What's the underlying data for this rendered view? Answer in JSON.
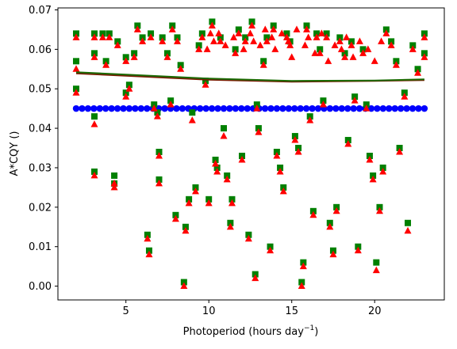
{
  "chart_data": {
    "type": "scatter",
    "xlabel": "Photoperiod (hours day",
    "xlabel_sup": "−1",
    "xlabel_tail": ")",
    "ylabel": "A*CQY ()",
    "xlim": [
      0.9,
      24.2
    ],
    "ylim": [
      -0.0035,
      0.0705
    ],
    "xticks": [
      5,
      10,
      15,
      20
    ],
    "yticks": [
      0.0,
      0.01,
      0.02,
      0.03,
      0.04,
      0.05,
      0.06,
      0.07
    ],
    "ytick_labels": [
      "0.00",
      "0.01",
      "0.02",
      "0.03",
      "0.04",
      "0.05",
      "0.06",
      "0.07"
    ],
    "grid": false,
    "legend": "none",
    "colors": {
      "green": "#008000",
      "red": "#ff0000",
      "blue": "#0000ff",
      "trend_dark": "#7a1a00",
      "trend_green": "#1a6a00"
    },
    "series": [
      {
        "marker": "square",
        "color": "green",
        "points": [
          [
            2.0,
            0.064
          ],
          [
            2.0,
            0.057
          ],
          [
            2.0,
            0.05
          ],
          [
            3.1,
            0.064
          ],
          [
            3.1,
            0.059
          ],
          [
            3.1,
            0.043
          ],
          [
            3.1,
            0.029
          ],
          [
            3.6,
            0.064
          ],
          [
            3.8,
            0.057
          ],
          [
            4.0,
            0.064
          ],
          [
            4.3,
            0.028
          ],
          [
            4.3,
            0.026
          ],
          [
            4.5,
            0.062
          ],
          [
            5.0,
            0.058
          ],
          [
            5.0,
            0.049
          ],
          [
            5.2,
            0.051
          ],
          [
            5.5,
            0.059
          ],
          [
            5.7,
            0.066
          ],
          [
            6.0,
            0.063
          ],
          [
            6.3,
            0.013
          ],
          [
            6.4,
            0.009
          ],
          [
            6.5,
            0.064
          ],
          [
            6.7,
            0.046
          ],
          [
            6.9,
            0.044
          ],
          [
            7.0,
            0.034
          ],
          [
            7.0,
            0.027
          ],
          [
            7.2,
            0.063
          ],
          [
            7.5,
            0.059
          ],
          [
            7.7,
            0.047
          ],
          [
            7.8,
            0.066
          ],
          [
            8.0,
            0.018
          ],
          [
            8.1,
            0.063
          ],
          [
            8.3,
            0.056
          ],
          [
            8.5,
            0.001
          ],
          [
            8.6,
            0.015
          ],
          [
            8.8,
            0.022
          ],
          [
            9.0,
            0.044
          ],
          [
            9.2,
            0.025
          ],
          [
            9.4,
            0.061
          ],
          [
            9.6,
            0.064
          ],
          [
            9.8,
            0.052
          ],
          [
            10.0,
            0.022
          ],
          [
            10.2,
            0.067
          ],
          [
            10.4,
            0.032
          ],
          [
            10.5,
            0.03
          ],
          [
            10.7,
            0.063
          ],
          [
            10.9,
            0.04
          ],
          [
            11.1,
            0.028
          ],
          [
            11.3,
            0.016
          ],
          [
            11.4,
            0.022
          ],
          [
            11.6,
            0.06
          ],
          [
            11.8,
            0.065
          ],
          [
            12.0,
            0.033
          ],
          [
            12.2,
            0.063
          ],
          [
            12.4,
            0.013
          ],
          [
            12.6,
            0.067
          ],
          [
            12.8,
            0.003
          ],
          [
            12.9,
            0.046
          ],
          [
            13.0,
            0.04
          ],
          [
            13.3,
            0.057
          ],
          [
            13.5,
            0.063
          ],
          [
            13.7,
            0.01
          ],
          [
            13.9,
            0.066
          ],
          [
            14.1,
            0.034
          ],
          [
            14.3,
            0.03
          ],
          [
            14.5,
            0.025
          ],
          [
            14.7,
            0.064
          ],
          [
            14.9,
            0.062
          ],
          [
            15.2,
            0.038
          ],
          [
            15.4,
            0.035
          ],
          [
            15.6,
            0.001
          ],
          [
            15.7,
            0.006
          ],
          [
            15.9,
            0.066
          ],
          [
            16.1,
            0.043
          ],
          [
            16.3,
            0.019
          ],
          [
            16.5,
            0.064
          ],
          [
            16.7,
            0.06
          ],
          [
            16.9,
            0.047
          ],
          [
            17.1,
            0.064
          ],
          [
            17.3,
            0.016
          ],
          [
            17.5,
            0.009
          ],
          [
            17.7,
            0.02
          ],
          [
            17.9,
            0.063
          ],
          [
            18.2,
            0.059
          ],
          [
            18.4,
            0.037
          ],
          [
            18.6,
            0.062
          ],
          [
            18.8,
            0.048
          ],
          [
            19.0,
            0.01
          ],
          [
            19.3,
            0.06
          ],
          [
            19.5,
            0.046
          ],
          [
            19.7,
            0.033
          ],
          [
            19.9,
            0.028
          ],
          [
            20.1,
            0.006
          ],
          [
            20.3,
            0.02
          ],
          [
            20.5,
            0.03
          ],
          [
            20.7,
            0.065
          ],
          [
            21.0,
            0.062
          ],
          [
            21.3,
            0.057
          ],
          [
            21.5,
            0.035
          ],
          [
            21.8,
            0.049
          ],
          [
            22.0,
            0.016
          ],
          [
            22.3,
            0.061
          ],
          [
            22.6,
            0.055
          ],
          [
            23.0,
            0.064
          ],
          [
            23.0,
            0.059
          ]
        ]
      },
      {
        "marker": "triangle",
        "color": "red",
        "points": [
          [
            2.0,
            0.063
          ],
          [
            2.0,
            0.055
          ],
          [
            2.0,
            0.049
          ],
          [
            3.1,
            0.063
          ],
          [
            3.1,
            0.058
          ],
          [
            3.1,
            0.041
          ],
          [
            3.1,
            0.028
          ],
          [
            3.6,
            0.063
          ],
          [
            3.8,
            0.056
          ],
          [
            4.0,
            0.063
          ],
          [
            4.3,
            0.026
          ],
          [
            4.3,
            0.025
          ],
          [
            4.5,
            0.061
          ],
          [
            5.0,
            0.057
          ],
          [
            5.0,
            0.048
          ],
          [
            5.2,
            0.05
          ],
          [
            5.5,
            0.058
          ],
          [
            5.7,
            0.065
          ],
          [
            6.0,
            0.062
          ],
          [
            6.3,
            0.012
          ],
          [
            6.4,
            0.008
          ],
          [
            6.5,
            0.063
          ],
          [
            6.7,
            0.045
          ],
          [
            6.9,
            0.043
          ],
          [
            7.0,
            0.033
          ],
          [
            7.0,
            0.026
          ],
          [
            7.2,
            0.062
          ],
          [
            7.5,
            0.058
          ],
          [
            7.7,
            0.046
          ],
          [
            7.8,
            0.065
          ],
          [
            8.0,
            0.017
          ],
          [
            8.1,
            0.062
          ],
          [
            8.3,
            0.055
          ],
          [
            8.5,
            0.0
          ],
          [
            8.6,
            0.014
          ],
          [
            8.8,
            0.021
          ],
          [
            9.0,
            0.042
          ],
          [
            9.2,
            0.024
          ],
          [
            9.4,
            0.06
          ],
          [
            9.6,
            0.063
          ],
          [
            9.8,
            0.051
          ],
          [
            10.0,
            0.021
          ],
          [
            10.2,
            0.066
          ],
          [
            10.4,
            0.031
          ],
          [
            10.5,
            0.029
          ],
          [
            10.7,
            0.062
          ],
          [
            10.9,
            0.038
          ],
          [
            11.1,
            0.027
          ],
          [
            11.3,
            0.015
          ],
          [
            11.4,
            0.021
          ],
          [
            11.6,
            0.059
          ],
          [
            11.8,
            0.064
          ],
          [
            12.0,
            0.032
          ],
          [
            12.2,
            0.062
          ],
          [
            12.4,
            0.012
          ],
          [
            12.6,
            0.066
          ],
          [
            12.8,
            0.002
          ],
          [
            12.9,
            0.045
          ],
          [
            13.0,
            0.039
          ],
          [
            13.3,
            0.056
          ],
          [
            13.5,
            0.062
          ],
          [
            13.7,
            0.009
          ],
          [
            13.9,
            0.065
          ],
          [
            14.1,
            0.033
          ],
          [
            14.3,
            0.029
          ],
          [
            14.5,
            0.024
          ],
          [
            14.7,
            0.063
          ],
          [
            14.9,
            0.061
          ],
          [
            15.2,
            0.037
          ],
          [
            15.4,
            0.034
          ],
          [
            15.6,
            0.0
          ],
          [
            15.7,
            0.005
          ],
          [
            15.9,
            0.065
          ],
          [
            16.1,
            0.042
          ],
          [
            16.3,
            0.018
          ],
          [
            16.5,
            0.063
          ],
          [
            16.7,
            0.059
          ],
          [
            16.9,
            0.046
          ],
          [
            17.1,
            0.063
          ],
          [
            17.3,
            0.015
          ],
          [
            17.5,
            0.008
          ],
          [
            17.7,
            0.019
          ],
          [
            17.9,
            0.062
          ],
          [
            18.2,
            0.058
          ],
          [
            18.4,
            0.036
          ],
          [
            18.6,
            0.061
          ],
          [
            18.8,
            0.047
          ],
          [
            19.0,
            0.009
          ],
          [
            19.3,
            0.059
          ],
          [
            19.5,
            0.045
          ],
          [
            19.7,
            0.032
          ],
          [
            19.9,
            0.027
          ],
          [
            20.1,
            0.004
          ],
          [
            20.3,
            0.019
          ],
          [
            20.5,
            0.029
          ],
          [
            20.7,
            0.064
          ],
          [
            21.0,
            0.061
          ],
          [
            21.3,
            0.056
          ],
          [
            21.5,
            0.034
          ],
          [
            21.8,
            0.048
          ],
          [
            22.0,
            0.014
          ],
          [
            22.3,
            0.06
          ],
          [
            22.6,
            0.054
          ],
          [
            23.0,
            0.063
          ],
          [
            23.0,
            0.058
          ],
          [
            9.9,
            0.06
          ],
          [
            10.1,
            0.064
          ],
          [
            10.3,
            0.062
          ],
          [
            10.6,
            0.064
          ],
          [
            11.0,
            0.061
          ],
          [
            11.5,
            0.063
          ],
          [
            12.1,
            0.06
          ],
          [
            12.5,
            0.064
          ],
          [
            12.7,
            0.062
          ],
          [
            13.1,
            0.061
          ],
          [
            13.4,
            0.065
          ],
          [
            13.8,
            0.063
          ],
          [
            14.0,
            0.06
          ],
          [
            14.4,
            0.064
          ],
          [
            14.8,
            0.062
          ],
          [
            15.0,
            0.058
          ],
          [
            15.3,
            0.065
          ],
          [
            15.8,
            0.061
          ],
          [
            16.0,
            0.063
          ],
          [
            16.4,
            0.059
          ],
          [
            16.8,
            0.064
          ],
          [
            17.2,
            0.057
          ],
          [
            17.6,
            0.061
          ],
          [
            18.0,
            0.06
          ],
          [
            18.3,
            0.063
          ],
          [
            18.7,
            0.058
          ],
          [
            19.1,
            0.062
          ],
          [
            19.6,
            0.06
          ],
          [
            20.0,
            0.057
          ],
          [
            20.4,
            0.062
          ]
        ]
      },
      {
        "marker": "circle",
        "color": "blue",
        "x_start": 2.0,
        "x_end": 23.0,
        "count": 60,
        "y": 0.045
      }
    ],
    "trend_lines": [
      {
        "color": "trend_dark",
        "x": [
          2.0,
          5.0,
          10.0,
          15.0,
          20.0,
          23.0
        ],
        "y": [
          0.0539,
          0.0533,
          0.0523,
          0.0518,
          0.052,
          0.0522
        ]
      },
      {
        "color": "trend_green",
        "x": [
          2.0,
          5.0,
          10.0,
          15.0,
          20.0,
          23.0
        ],
        "y": [
          0.0542,
          0.0536,
          0.0526,
          0.052,
          0.0521,
          0.0524
        ]
      }
    ]
  }
}
